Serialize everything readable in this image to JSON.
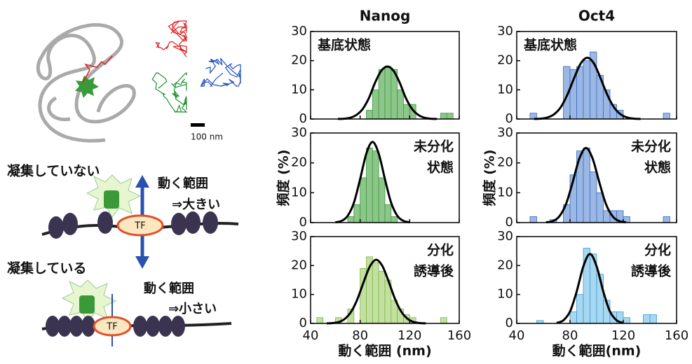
{
  "chart_data": [
    {
      "type": "histogram",
      "title": "Nanog",
      "annotation": [
        "基底状態"
      ],
      "color": "#8cc68a",
      "edgecolor": "#3d9a3d",
      "bins": [
        40,
        45,
        50,
        55,
        60,
        65,
        70,
        75,
        80,
        85,
        90,
        95,
        100,
        105,
        110,
        115,
        120,
        125,
        130,
        135,
        140,
        145,
        150,
        155,
        160
      ],
      "values": [
        0,
        0,
        0,
        0,
        0,
        0,
        0,
        0,
        0,
        3,
        10,
        17,
        18,
        17,
        10,
        5,
        5,
        0,
        0,
        0,
        0,
        2,
        2,
        0
      ],
      "fit": {
        "x": [
          62,
          67,
          72,
          77,
          82,
          87,
          92,
          97,
          102,
          107,
          112,
          117,
          122,
          127,
          132,
          137,
          142
        ],
        "values": [
          0.02,
          0.1,
          0.43,
          1.4,
          3.4,
          7.1,
          12.4,
          16.5,
          18,
          16.5,
          12.4,
          7.1,
          3.4,
          1.4,
          0.43,
          0.1,
          0.02
        ]
      },
      "xlim": [
        40,
        160
      ],
      "xticks": [
        40,
        80,
        120,
        160
      ],
      "ylim": [
        0,
        30
      ],
      "yticks": [
        0,
        10,
        20,
        30
      ]
    },
    {
      "type": "histogram",
      "title": "Oct4",
      "annotation": [
        "基底状態"
      ],
      "color": "#9bb8e4",
      "edgecolor": "#3b6cc4",
      "bins": [
        40,
        45,
        50,
        55,
        60,
        65,
        70,
        75,
        80,
        85,
        90,
        95,
        100,
        105,
        110,
        115,
        120,
        125,
        130,
        135,
        140,
        145,
        150,
        155,
        160
      ],
      "values": [
        0,
        0,
        2,
        0,
        0,
        0,
        0,
        18,
        17,
        18,
        20,
        23,
        15,
        10,
        5,
        3,
        0,
        0,
        0,
        0,
        0,
        0,
        2,
        0
      ],
      "fit": {
        "x": [
          53,
          58,
          63,
          68,
          73,
          78,
          83,
          88,
          93,
          98,
          103,
          108,
          113,
          118,
          123,
          128,
          133
        ],
        "values": [
          0.03,
          0.12,
          0.5,
          1.6,
          4.0,
          8.3,
          13.9,
          19.0,
          21,
          19.0,
          13.9,
          8.3,
          4.0,
          1.6,
          0.5,
          0.12,
          0.03
        ]
      },
      "xlim": [
        40,
        160
      ],
      "xticks": [
        40,
        80,
        120,
        160
      ],
      "ylim": [
        0,
        30
      ],
      "yticks": [
        0,
        10,
        20,
        30
      ]
    },
    {
      "type": "histogram",
      "annotation": [
        "未分化",
        "状態"
      ],
      "ylabel": "頻度 (%)",
      "color": "#8cc68a",
      "edgecolor": "#3d9a3d",
      "bins": [
        40,
        45,
        50,
        55,
        60,
        65,
        70,
        75,
        80,
        85,
        90,
        95,
        100,
        105,
        110,
        115,
        120,
        125,
        130,
        135,
        140,
        145,
        150,
        155,
        160
      ],
      "values": [
        0,
        0,
        0,
        0,
        0,
        0,
        2,
        6,
        15,
        25,
        24,
        15,
        6,
        2,
        0,
        0,
        0,
        0,
        0,
        0,
        0,
        0,
        0,
        0
      ],
      "fit": {
        "x": [
          60,
          65,
          70,
          75,
          80,
          85,
          90,
          95,
          100,
          105,
          110,
          115,
          120
        ],
        "values": [
          0.1,
          0.57,
          2.3,
          6.7,
          14.6,
          23.1,
          27,
          23.1,
          14.6,
          6.7,
          2.3,
          0.57,
          0.1
        ]
      },
      "xlim": [
        40,
        160
      ],
      "xticks": [
        40,
        80,
        120,
        160
      ],
      "ylim": [
        0,
        30
      ],
      "yticks": [
        0,
        10,
        20,
        30
      ]
    },
    {
      "type": "histogram",
      "annotation": [
        "未分化",
        "状態"
      ],
      "ylabel": "頻度 (%)",
      "color": "#9bb8e4",
      "edgecolor": "#3b6cc4",
      "bins": [
        40,
        45,
        50,
        55,
        60,
        65,
        70,
        75,
        80,
        85,
        90,
        95,
        100,
        105,
        110,
        115,
        120,
        125,
        130,
        135,
        140,
        145,
        150,
        155,
        160
      ],
      "values": [
        0,
        0,
        2,
        0,
        0,
        1,
        0,
        6,
        16,
        24,
        25,
        17,
        10,
        4,
        4,
        4,
        2,
        0,
        0,
        0,
        0,
        0,
        2,
        0
      ],
      "fit": {
        "x": [
          62,
          67,
          72,
          77,
          82,
          87,
          92,
          97,
          102,
          107,
          112,
          117,
          122
        ],
        "values": [
          0.1,
          0.5,
          2.1,
          6.2,
          13.5,
          21.4,
          25,
          21.4,
          13.5,
          6.2,
          2.1,
          0.5,
          0.1
        ]
      },
      "xlim": [
        40,
        160
      ],
      "xticks": [
        40,
        80,
        120,
        160
      ],
      "ylim": [
        0,
        30
      ],
      "yticks": [
        0,
        10,
        20,
        30
      ]
    },
    {
      "type": "histogram",
      "annotation": [
        "分化",
        "誘導後"
      ],
      "xlabel": "動く範囲 (nm)",
      "color": "#c4e0a0",
      "edgecolor": "#7ab648",
      "bins": [
        40,
        45,
        50,
        55,
        60,
        65,
        70,
        75,
        80,
        85,
        90,
        95,
        100,
        105,
        110,
        115,
        120,
        125,
        130,
        135,
        140,
        145,
        150,
        155,
        160
      ],
      "values": [
        0,
        2,
        0,
        0,
        2,
        0,
        5,
        0,
        19,
        23,
        21,
        18,
        15,
        8,
        5,
        3,
        2,
        0,
        0,
        0,
        0,
        2,
        0,
        0
      ],
      "fit": {
        "x": [
          53,
          58,
          63,
          68,
          73,
          78,
          83,
          88,
          93,
          98,
          103,
          108,
          113,
          118,
          123,
          128,
          133
        ],
        "values": [
          0.03,
          0.13,
          0.5,
          1.7,
          4.2,
          8.6,
          14.5,
          19.8,
          22,
          19.8,
          14.5,
          8.6,
          4.2,
          1.7,
          0.5,
          0.13,
          0.03
        ]
      },
      "xlim": [
        40,
        160
      ],
      "xticks": [
        40,
        80,
        120,
        160
      ],
      "ylim": [
        0,
        30
      ],
      "yticks": [
        0,
        10,
        20,
        30
      ]
    },
    {
      "type": "histogram",
      "annotation": [
        "分化",
        "誘導後"
      ],
      "xlabel": "動く範囲(nm)",
      "color": "#a8d8f0",
      "edgecolor": "#3a98d8",
      "bins": [
        40,
        45,
        50,
        55,
        60,
        65,
        70,
        75,
        80,
        85,
        90,
        95,
        100,
        105,
        110,
        115,
        120,
        125,
        130,
        135,
        140,
        145,
        150,
        155,
        160
      ],
      "values": [
        0,
        0,
        0,
        1,
        0,
        0,
        0,
        0,
        4,
        10,
        26,
        24,
        17,
        8,
        4,
        4,
        2,
        0,
        0,
        3,
        3,
        0,
        0,
        0
      ],
      "fit": {
        "x": [
          70,
          75,
          80,
          85,
          90,
          95,
          100,
          105,
          110,
          115,
          120
        ],
        "values": [
          0.18,
          1.06,
          4.1,
          11,
          19.7,
          24,
          19.7,
          11,
          4.1,
          1.06,
          0.18
        ]
      },
      "xlim": [
        40,
        160
      ],
      "xticks": [
        40,
        80,
        120,
        160
      ],
      "ylim": [
        0,
        30
      ],
      "yticks": [
        0,
        10,
        20,
        30
      ]
    }
  ],
  "diagram": {
    "scale_bar": "100 nm",
    "open": {
      "title": "凝集していない",
      "range": "動く範囲",
      "result": "⇒大きい",
      "tf": "TF"
    },
    "condensed": {
      "title": "凝集している",
      "range": "動く範囲",
      "result": "⇒小さい",
      "tf": "TF"
    }
  }
}
